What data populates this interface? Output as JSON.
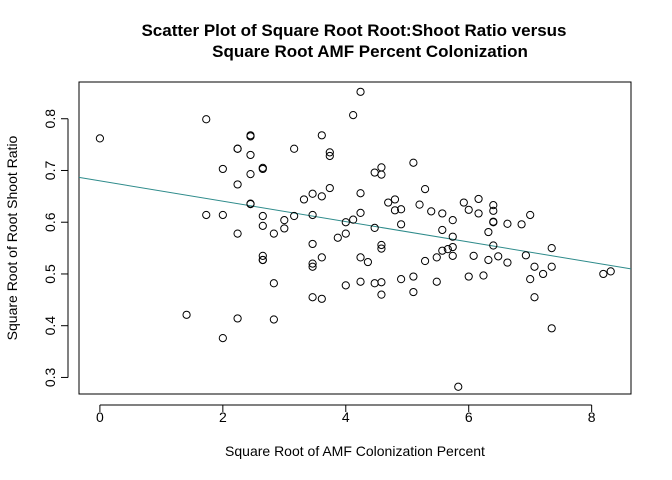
{
  "chart_data": {
    "type": "scatter",
    "title_lines": [
      "Scatter Plot of Square Root Root:Shoot Ratio versus",
      "Square Root AMF Percent Colonization"
    ],
    "xlabel": "Square Root of AMF Colonization Percent",
    "ylabel": "Square Root of Root Shoot Ratio",
    "xlim": [
      -0.34,
      8.64
    ],
    "ylim": [
      0.268,
      0.871
    ],
    "x_ticks": [
      0,
      2,
      4,
      6,
      8
    ],
    "x_tick_labels": [
      "0",
      "2",
      "4",
      "6",
      "8"
    ],
    "y_ticks": [
      0.3,
      0.4,
      0.5,
      0.6,
      0.7,
      0.8
    ],
    "y_tick_labels": [
      "0.3",
      "0.4",
      "0.5",
      "0.6",
      "0.7",
      "0.8"
    ],
    "grid": false,
    "legend": "none",
    "point_color": "#000000",
    "trend_color": "#2e8b8b",
    "trendline": {
      "intercept": 0.68,
      "slope": -0.0197
    },
    "points": [
      [
        0.0,
        0.762
      ],
      [
        1.41,
        0.421
      ],
      [
        1.73,
        0.799
      ],
      [
        1.73,
        0.614
      ],
      [
        2.0,
        0.703
      ],
      [
        2.0,
        0.614
      ],
      [
        2.0,
        0.376
      ],
      [
        2.24,
        0.742
      ],
      [
        2.24,
        0.742
      ],
      [
        2.24,
        0.673
      ],
      [
        2.24,
        0.578
      ],
      [
        2.24,
        0.414
      ],
      [
        2.45,
        0.766
      ],
      [
        2.45,
        0.768
      ],
      [
        2.45,
        0.73
      ],
      [
        2.45,
        0.693
      ],
      [
        2.45,
        0.635
      ],
      [
        2.45,
        0.636
      ],
      [
        2.65,
        0.705
      ],
      [
        2.65,
        0.703
      ],
      [
        2.65,
        0.612
      ],
      [
        2.65,
        0.593
      ],
      [
        2.65,
        0.535
      ],
      [
        2.65,
        0.527
      ],
      [
        2.65,
        0.527
      ],
      [
        2.83,
        0.578
      ],
      [
        2.83,
        0.482
      ],
      [
        2.83,
        0.412
      ],
      [
        3.0,
        0.604
      ],
      [
        3.0,
        0.588
      ],
      [
        3.16,
        0.742
      ],
      [
        3.16,
        0.612
      ],
      [
        3.32,
        0.644
      ],
      [
        3.46,
        0.655
      ],
      [
        3.46,
        0.614
      ],
      [
        3.46,
        0.558
      ],
      [
        3.46,
        0.52
      ],
      [
        3.46,
        0.514
      ],
      [
        3.46,
        0.455
      ],
      [
        3.61,
        0.768
      ],
      [
        3.61,
        0.65
      ],
      [
        3.61,
        0.532
      ],
      [
        3.61,
        0.452
      ],
      [
        3.74,
        0.735
      ],
      [
        3.74,
        0.728
      ],
      [
        3.74,
        0.666
      ],
      [
        3.87,
        0.57
      ],
      [
        4.0,
        0.6
      ],
      [
        4.0,
        0.578
      ],
      [
        4.0,
        0.478
      ],
      [
        4.12,
        0.807
      ],
      [
        4.12,
        0.605
      ],
      [
        4.24,
        0.852
      ],
      [
        4.24,
        0.656
      ],
      [
        4.24,
        0.618
      ],
      [
        4.24,
        0.532
      ],
      [
        4.24,
        0.485
      ],
      [
        4.36,
        0.523
      ],
      [
        4.47,
        0.696
      ],
      [
        4.47,
        0.589
      ],
      [
        4.47,
        0.482
      ],
      [
        4.58,
        0.706
      ],
      [
        4.58,
        0.692
      ],
      [
        4.58,
        0.556
      ],
      [
        4.58,
        0.549
      ],
      [
        4.58,
        0.484
      ],
      [
        4.58,
        0.46
      ],
      [
        4.69,
        0.638
      ],
      [
        4.8,
        0.644
      ],
      [
        4.8,
        0.623
      ],
      [
        4.9,
        0.625
      ],
      [
        4.9,
        0.596
      ],
      [
        4.9,
        0.49
      ],
      [
        5.1,
        0.715
      ],
      [
        5.1,
        0.495
      ],
      [
        5.1,
        0.465
      ],
      [
        5.2,
        0.634
      ],
      [
        5.29,
        0.664
      ],
      [
        5.29,
        0.525
      ],
      [
        5.39,
        0.621
      ],
      [
        5.48,
        0.532
      ],
      [
        5.48,
        0.485
      ],
      [
        5.57,
        0.617
      ],
      [
        5.57,
        0.585
      ],
      [
        5.57,
        0.545
      ],
      [
        5.66,
        0.548
      ],
      [
        5.74,
        0.604
      ],
      [
        5.74,
        0.572
      ],
      [
        5.74,
        0.552
      ],
      [
        5.74,
        0.535
      ],
      [
        5.83,
        0.282
      ],
      [
        5.92,
        0.638
      ],
      [
        6.0,
        0.624
      ],
      [
        6.0,
        0.495
      ],
      [
        6.08,
        0.535
      ],
      [
        6.16,
        0.645
      ],
      [
        6.16,
        0.617
      ],
      [
        6.24,
        0.497
      ],
      [
        6.32,
        0.581
      ],
      [
        6.32,
        0.527
      ],
      [
        6.4,
        0.633
      ],
      [
        6.4,
        0.622
      ],
      [
        6.4,
        0.601
      ],
      [
        6.4,
        0.6
      ],
      [
        6.4,
        0.555
      ],
      [
        6.48,
        0.534
      ],
      [
        6.63,
        0.597
      ],
      [
        6.63,
        0.522
      ],
      [
        6.86,
        0.596
      ],
      [
        6.93,
        0.536
      ],
      [
        7.0,
        0.614
      ],
      [
        7.0,
        0.49
      ],
      [
        7.07,
        0.455
      ],
      [
        7.07,
        0.514
      ],
      [
        7.21,
        0.5
      ],
      [
        7.35,
        0.55
      ],
      [
        7.35,
        0.514
      ],
      [
        7.35,
        0.395
      ],
      [
        8.19,
        0.5
      ],
      [
        8.31,
        0.505
      ]
    ]
  }
}
